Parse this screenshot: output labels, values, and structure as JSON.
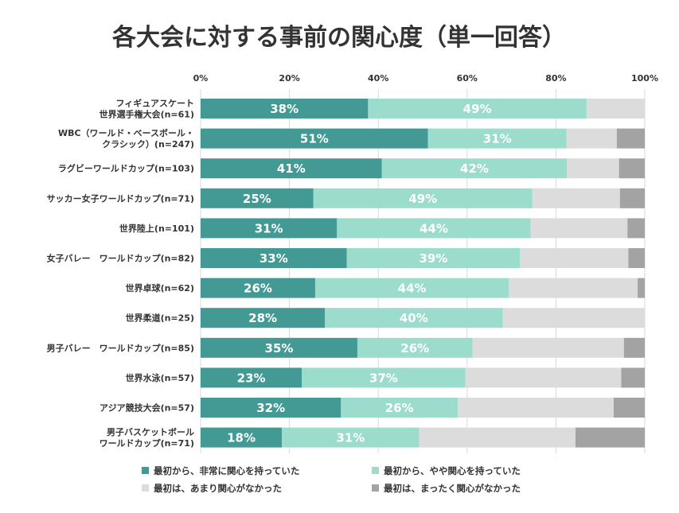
{
  "chart_data": {
    "type": "bar",
    "orientation": "horizontal",
    "stacked": true,
    "title": "各大会に対する事前の関心度（単一回答）",
    "xlim": [
      0,
      100
    ],
    "x_ticks": [
      "0%",
      "20%",
      "40%",
      "60%",
      "80%",
      "100%"
    ],
    "grid": true,
    "legend_position": "bottom",
    "colors": [
      "#439a94",
      "#9bdccd",
      "#dcdcdc",
      "#a3a3a3"
    ],
    "categories": [
      [
        "フィギュアスケート",
        "世界選手権大会(n=61)"
      ],
      [
        "WBC（ワールド・ベースボール・",
        "クラシック）(n=247)"
      ],
      [
        "ラグビーワールドカップ(n=103)"
      ],
      [
        "サッカー女子ワールドカップ(n=71)"
      ],
      [
        "世界陸上(n=101)"
      ],
      [
        "女子バレー　ワールドカップ(n=82)"
      ],
      [
        "世界卓球(n=62)"
      ],
      [
        "世界柔道(n=25)"
      ],
      [
        "男子バレー　ワールドカップ(n=85)"
      ],
      [
        "世界水泳(n=57)"
      ],
      [
        "アジア競技大会(n=57)"
      ],
      [
        "男子バスケットボール",
        "ワールドカップ(n=71)"
      ]
    ],
    "series": [
      {
        "name": "最初から、非常に関心を持っていた",
        "values": [
          37.7,
          51.2,
          40.8,
          25.4,
          30.7,
          32.9,
          25.8,
          28.0,
          35.3,
          22.8,
          31.6,
          18.3
        ],
        "labels": [
          "38%",
          "51%",
          "41%",
          "25%",
          "31%",
          "33%",
          "26%",
          "28%",
          "35%",
          "23%",
          "32%",
          "18%"
        ]
      },
      {
        "name": "最初から、やや関心を持っていた",
        "values": [
          49.2,
          31.2,
          41.7,
          49.3,
          43.6,
          39.0,
          43.6,
          40.0,
          25.9,
          36.8,
          26.3,
          30.9
        ],
        "labels": [
          "49%",
          "31%",
          "42%",
          "49%",
          "44%",
          "39%",
          "44%",
          "40%",
          "26%",
          "37%",
          "26%",
          "31%"
        ]
      },
      {
        "name": "最初は、あまり関心がなかった",
        "values": [
          13.1,
          11.3,
          11.7,
          19.7,
          21.8,
          24.4,
          29.0,
          32.0,
          34.1,
          35.1,
          35.1,
          35.2
        ],
        "labels": [
          "",
          "",
          "",
          "",
          "",
          "",
          "",
          "",
          "",
          "",
          "",
          ""
        ]
      },
      {
        "name": "最初は、まったく関心がなかった",
        "values": [
          0.0,
          6.3,
          5.8,
          5.6,
          3.9,
          3.7,
          1.6,
          0.0,
          4.7,
          5.3,
          7.0,
          15.6
        ],
        "labels": [
          "",
          "",
          "",
          "",
          "",
          "",
          "",
          "",
          "",
          "",
          "",
          ""
        ]
      }
    ]
  }
}
